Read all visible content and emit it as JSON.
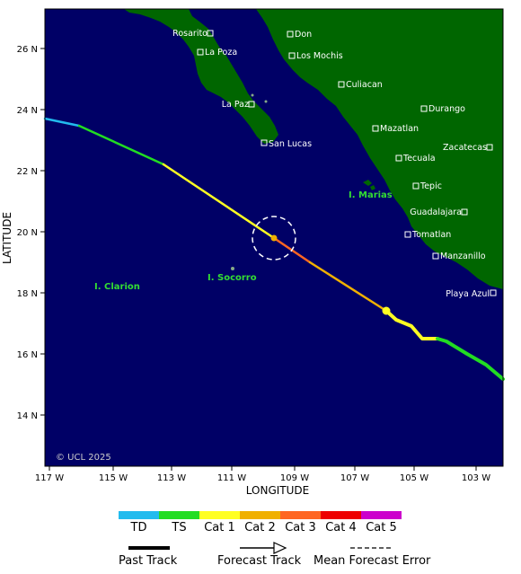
{
  "axes": {
    "x_title": "LONGITUDE",
    "y_title": "LATITUDE",
    "x_ticks": [
      "117 W",
      "115 W",
      "113 W",
      "111 W",
      "109 W",
      "107 W",
      "105 W",
      "103 W"
    ],
    "y_ticks": [
      "26 N",
      "24 N",
      "22 N",
      "20 N",
      "18 N",
      "16 N",
      "14 N"
    ]
  },
  "cities": [
    {
      "name": "Rosarito"
    },
    {
      "name": "La Poza"
    },
    {
      "name": "La Paz"
    },
    {
      "name": "San Lucas"
    },
    {
      "name": "Don"
    },
    {
      "name": "Los Mochis"
    },
    {
      "name": "Culiacan"
    },
    {
      "name": "Durango"
    },
    {
      "name": "Mazatlan"
    },
    {
      "name": "Zacatecas"
    },
    {
      "name": "Tecuala"
    },
    {
      "name": "Tepic"
    },
    {
      "name": "Guadalajara"
    },
    {
      "name": "Tomatlan"
    },
    {
      "name": "Manzanillo"
    },
    {
      "name": "Playa Azul"
    }
  ],
  "islands": {
    "marias": "I. Marias",
    "socorro": "I. Socorro",
    "clarion": "I. Clarion"
  },
  "copyright": "© UCL 2025",
  "storm": {
    "position": {
      "lon": 109.7,
      "lat": 19.8
    },
    "track_colors": {
      "TD": "#22bbee",
      "TS": "#22dd22",
      "Cat1": "#ffff22",
      "Cat2": "#f0b000",
      "Cat3": "#ff6622",
      "Cat4": "#ee0000",
      "Cat5": "#cc00cc"
    }
  },
  "legend": {
    "categories": [
      {
        "label": "TD",
        "color": "#22bbee"
      },
      {
        "label": "TS",
        "color": "#22dd22"
      },
      {
        "label": "Cat 1",
        "color": "#ffff22"
      },
      {
        "label": "Cat 2",
        "color": "#f0b000"
      },
      {
        "label": "Cat 3",
        "color": "#ff6622"
      },
      {
        "label": "Cat 4",
        "color": "#ee0000"
      },
      {
        "label": "Cat 5",
        "color": "#cc00cc"
      }
    ],
    "past_track": "Past Track",
    "forecast_track": "Forecast Track",
    "mean_error": "Mean Forecast Error"
  },
  "colors": {
    "ocean": "#000066",
    "land": "#006600"
  }
}
